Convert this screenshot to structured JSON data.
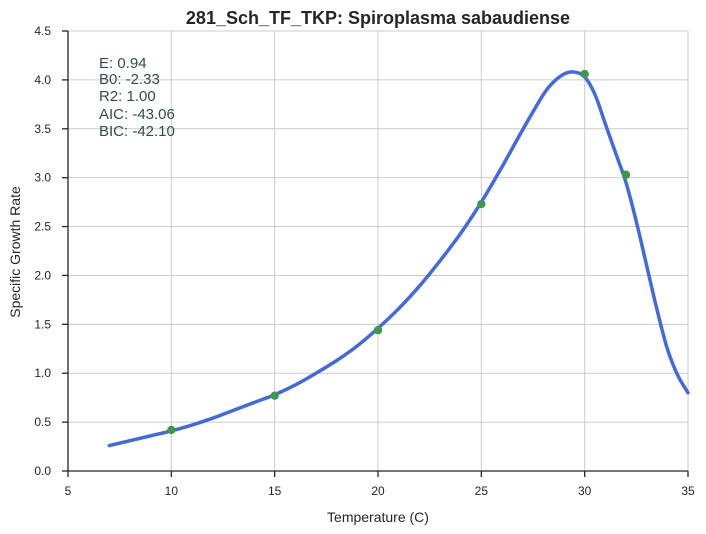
{
  "chart_data": {
    "type": "line",
    "title": "281_Sch_TF_TKP: Spiroplasma sabaudiense",
    "xlabel": "Temperature (C)",
    "ylabel": "Specific Growth Rate",
    "xlim": [
      5,
      35
    ],
    "ylim": [
      0,
      4.5
    ],
    "xticks": [
      5,
      10,
      15,
      20,
      25,
      30,
      35
    ],
    "yticks": [
      0.0,
      0.5,
      1.0,
      1.5,
      2.0,
      2.5,
      3.0,
      3.5,
      4.0,
      4.5
    ],
    "xtick_labels": [
      "5",
      "10",
      "15",
      "20",
      "25",
      "30",
      "35"
    ],
    "ytick_labels": [
      "0.0",
      "0.5",
      "1.0",
      "1.5",
      "2.0",
      "2.5",
      "3.0",
      "3.5",
      "4.0",
      "4.5"
    ],
    "grid": true,
    "series": [
      {
        "kind": "scatter",
        "color": "#3a9a4a",
        "x": [
          10,
          15,
          20,
          25,
          30,
          32
        ],
        "y": [
          0.42,
          0.77,
          1.44,
          2.73,
          4.06,
          3.03
        ]
      },
      {
        "kind": "line",
        "color": "#4169e1",
        "x": [
          7,
          8,
          9,
          10,
          11,
          12,
          13,
          14,
          15,
          16,
          17,
          18,
          19,
          20,
          21,
          22,
          23,
          24,
          25,
          26,
          27,
          28,
          28.5,
          29,
          29.5,
          30,
          30.5,
          31,
          31.5,
          32,
          32.5,
          33,
          33.5,
          34,
          34.5,
          35
        ],
        "y": [
          0.26,
          0.31,
          0.36,
          0.41,
          0.47,
          0.54,
          0.62,
          0.7,
          0.78,
          0.88,
          1.0,
          1.13,
          1.28,
          1.46,
          1.66,
          1.89,
          2.15,
          2.43,
          2.75,
          3.11,
          3.49,
          3.85,
          3.98,
          4.06,
          4.08,
          4.03,
          3.85,
          3.55,
          3.25,
          2.95,
          2.55,
          2.1,
          1.65,
          1.25,
          0.98,
          0.8
        ]
      }
    ],
    "annotation": [
      "E:  0.94",
      "B0:  -2.33",
      "R2:  1.00",
      "AIC: -43.06",
      "BIC: -42.10"
    ]
  }
}
